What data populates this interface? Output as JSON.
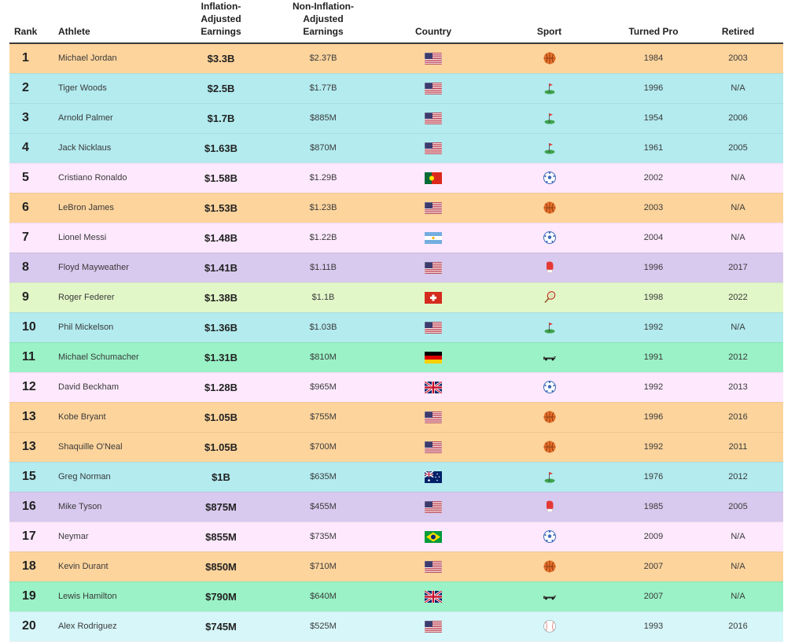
{
  "header": {
    "rank": "Rank",
    "athlete": "Athlete",
    "inflation": [
      "Inflation-",
      "Adjusted",
      "Earnings"
    ],
    "noninflation": [
      "Non-Inflation-",
      "Adjusted",
      "Earnings"
    ],
    "country": "Country",
    "sport": "Sport",
    "turned_pro": "Turned Pro",
    "retired": "Retired"
  },
  "colors": {
    "basketball": "#fdd49c",
    "golf": "#b3ebef",
    "soccer": "#fde8fd",
    "boxing": "#d8c9ee",
    "tennis": "#e2f7c8",
    "motorsport": "#9af2c6",
    "baseball": "#d6f6f9"
  },
  "rows": [
    {
      "rank": "1",
      "athlete": "Michael Jordan",
      "inflation": "$3.3B",
      "noninflation": "$2.37B",
      "country": "usa-flag",
      "sport": "basketball",
      "turned_pro": "1984",
      "retired": "2003"
    },
    {
      "rank": "2",
      "athlete": "Tiger Woods",
      "inflation": "$2.5B",
      "noninflation": "$1.77B",
      "country": "usa-flag",
      "sport": "golf",
      "turned_pro": "1996",
      "retired": "N/A"
    },
    {
      "rank": "3",
      "athlete": "Arnold Palmer",
      "inflation": "$1.7B",
      "noninflation": "$885M",
      "country": "usa-flag",
      "sport": "golf",
      "turned_pro": "1954",
      "retired": "2006"
    },
    {
      "rank": "4",
      "athlete": "Jack Nicklaus",
      "inflation": "$1.63B",
      "noninflation": "$870M",
      "country": "usa-flag",
      "sport": "golf",
      "turned_pro": "1961",
      "retired": "2005"
    },
    {
      "rank": "5",
      "athlete": "Cristiano Ronaldo",
      "inflation": "$1.58B",
      "noninflation": "$1.29B",
      "country": "portugal-flag",
      "sport": "soccer",
      "turned_pro": "2002",
      "retired": "N/A"
    },
    {
      "rank": "6",
      "athlete": "LeBron James",
      "inflation": "$1.53B",
      "noninflation": "$1.23B",
      "country": "usa-flag",
      "sport": "basketball",
      "turned_pro": "2003",
      "retired": "N/A"
    },
    {
      "rank": "7",
      "athlete": "Lionel Messi",
      "inflation": "$1.48B",
      "noninflation": "$1.22B",
      "country": "argentina-flag",
      "sport": "soccer",
      "turned_pro": "2004",
      "retired": "N/A"
    },
    {
      "rank": "8",
      "athlete": "Floyd Mayweather",
      "inflation": "$1.41B",
      "noninflation": "$1.11B",
      "country": "usa-flag",
      "sport": "boxing",
      "turned_pro": "1996",
      "retired": "2017"
    },
    {
      "rank": "9",
      "athlete": "Roger Federer",
      "inflation": "$1.38B",
      "noninflation": "$1.1B",
      "country": "switzerland-flag",
      "sport": "tennis",
      "turned_pro": "1998",
      "retired": "2022"
    },
    {
      "rank": "10",
      "athlete": "Phil Mickelson",
      "inflation": "$1.36B",
      "noninflation": "$1.03B",
      "country": "usa-flag",
      "sport": "golf",
      "turned_pro": "1992",
      "retired": "N/A"
    },
    {
      "rank": "11",
      "athlete": "Michael Schumacher",
      "inflation": "$1.31B",
      "noninflation": "$810M",
      "country": "germany-flag",
      "sport": "motorsport",
      "turned_pro": "1991",
      "retired": "2012"
    },
    {
      "rank": "12",
      "athlete": "David Beckham",
      "inflation": "$1.28B",
      "noninflation": "$965M",
      "country": "uk-flag",
      "sport": "soccer",
      "turned_pro": "1992",
      "retired": "2013"
    },
    {
      "rank": "13",
      "athlete": "Kobe Bryant",
      "inflation": "$1.05B",
      "noninflation": "$755M",
      "country": "usa-flag",
      "sport": "basketball",
      "turned_pro": "1996",
      "retired": "2016"
    },
    {
      "rank": "13",
      "athlete": "Shaquille O'Neal",
      "inflation": "$1.05B",
      "noninflation": "$700M",
      "country": "usa-flag",
      "sport": "basketball",
      "turned_pro": "1992",
      "retired": "2011"
    },
    {
      "rank": "15",
      "athlete": "Greg Norman",
      "inflation": "$1B",
      "noninflation": "$635M",
      "country": "australia-flag",
      "sport": "golf",
      "turned_pro": "1976",
      "retired": "2012"
    },
    {
      "rank": "16",
      "athlete": "Mike Tyson",
      "inflation": "$875M",
      "noninflation": "$455M",
      "country": "usa-flag",
      "sport": "boxing",
      "turned_pro": "1985",
      "retired": "2005"
    },
    {
      "rank": "17",
      "athlete": "Neymar",
      "inflation": "$855M",
      "noninflation": "$735M",
      "country": "brazil-flag",
      "sport": "soccer",
      "turned_pro": "2009",
      "retired": "N/A"
    },
    {
      "rank": "18",
      "athlete": "Kevin Durant",
      "inflation": "$850M",
      "noninflation": "$710M",
      "country": "usa-flag",
      "sport": "basketball",
      "turned_pro": "2007",
      "retired": "N/A"
    },
    {
      "rank": "19",
      "athlete": "Lewis Hamilton",
      "inflation": "$790M",
      "noninflation": "$640M",
      "country": "uk-flag",
      "sport": "motorsport",
      "turned_pro": "2007",
      "retired": "N/A"
    },
    {
      "rank": "20",
      "athlete": "Alex Rodriguez",
      "inflation": "$745M",
      "noninflation": "$525M",
      "country": "usa-flag",
      "sport": "baseball",
      "turned_pro": "1993",
      "retired": "2016"
    }
  ]
}
